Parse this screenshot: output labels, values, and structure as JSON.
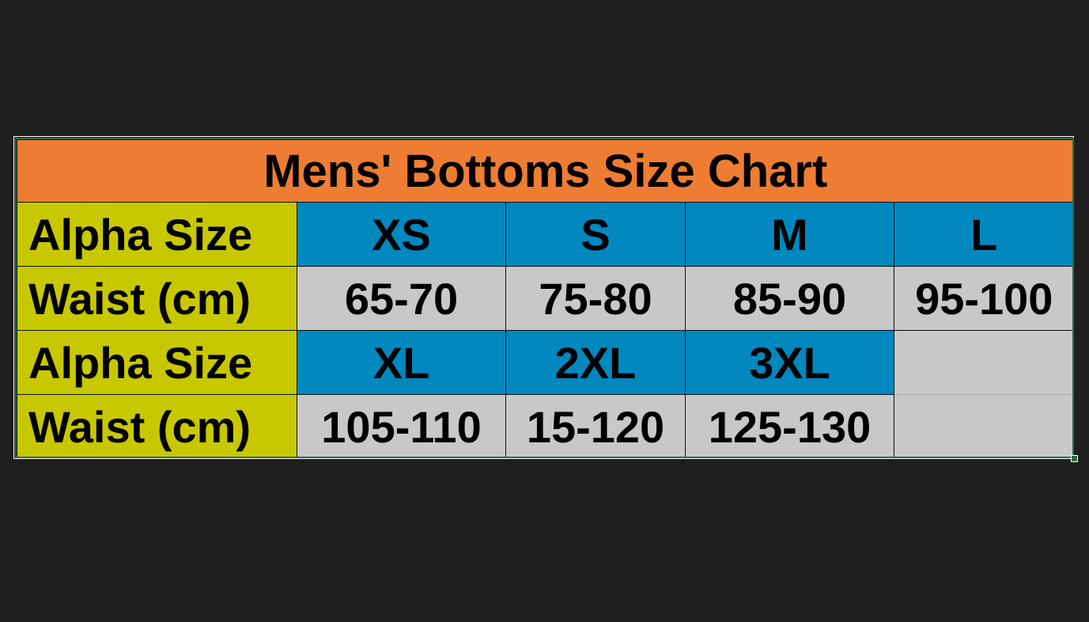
{
  "title": "Mens' Bottoms Size Chart",
  "colors": {
    "title_bg": "#ee7d33",
    "label_bg": "#c8c800",
    "alpha_bg": "#0088bf",
    "waist_bg": "#c8c8c8"
  },
  "rows": [
    {
      "label": "Alpha Size",
      "type": "alpha",
      "cells": [
        "XS",
        "S",
        "M",
        "L"
      ]
    },
    {
      "label": "Waist (cm)",
      "type": "waist",
      "cells": [
        "65-70",
        "75-80",
        "85-90",
        "95-100"
      ]
    },
    {
      "label": "Alpha Size",
      "type": "alpha",
      "cells": [
        "XL",
        "2XL",
        "3XL",
        ""
      ]
    },
    {
      "label": "Waist (cm)",
      "type": "waist",
      "cells": [
        "105-110",
        "15-120",
        "125-130",
        ""
      ]
    }
  ]
}
